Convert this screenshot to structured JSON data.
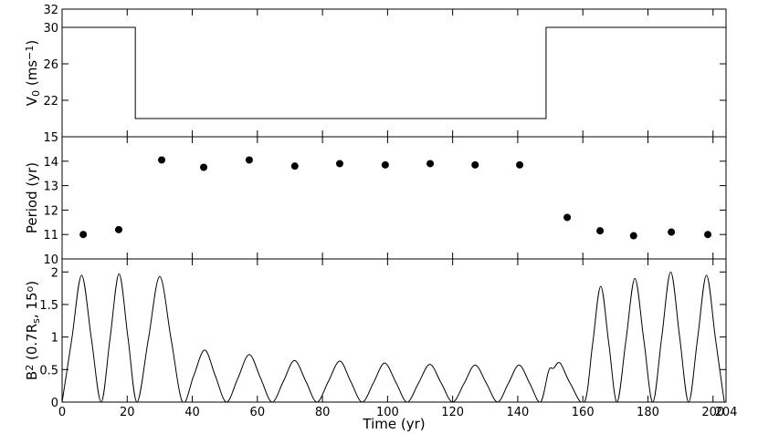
{
  "chart_data": [
    {
      "type": "line",
      "color": "#000000",
      "ylabel": [
        {
          "text": "V"
        },
        {
          "text": "0",
          "sub": true
        },
        {
          "text": " (ms"
        },
        {
          "text": "−1",
          "sup": true
        },
        {
          "text": ")"
        }
      ],
      "x": [
        0,
        22.5,
        22.5,
        148.7,
        148.7,
        204
      ],
      "values": [
        30,
        30,
        20,
        20,
        30,
        30
      ],
      "xlim": [
        0,
        204
      ],
      "ylim": [
        18,
        32
      ],
      "yticks": [
        22,
        26,
        30,
        32
      ]
    },
    {
      "type": "scatter",
      "color": "#000000",
      "ylabel": [
        {
          "text": "Period (yr)"
        }
      ],
      "x": [
        6.5,
        17.4,
        30.6,
        43.5,
        57.5,
        71.5,
        85.3,
        99.3,
        113.1,
        126.9,
        140.6,
        155.2,
        165.3,
        175.6,
        187.2,
        198.4
      ],
      "values": [
        11.0,
        11.2,
        14.05,
        13.75,
        14.05,
        13.8,
        13.9,
        13.85,
        13.9,
        13.85,
        13.85,
        11.7,
        11.15,
        10.95,
        11.1,
        11.0
      ],
      "xlim": [
        0,
        204
      ],
      "ylim": [
        10,
        15
      ],
      "yticks": [
        10,
        11,
        12,
        13,
        14,
        15
      ]
    },
    {
      "type": "line",
      "color": "#000000",
      "smooth": true,
      "ylabel": [
        {
          "text": "B"
        },
        {
          "text": "2",
          "sup": true
        },
        {
          "text": " (0.7R"
        },
        {
          "text": "s",
          "sub": true
        },
        {
          "text": ", 15"
        },
        {
          "text": "o",
          "sup": true
        },
        {
          "text": ")"
        }
      ],
      "xlabel": "Time (yr)",
      "x": [
        0,
        3,
        6,
        9,
        12,
        14.75,
        17.5,
        20.25,
        23,
        26.5,
        30,
        33.5,
        37,
        40.4,
        43.8,
        47.1,
        50.5,
        54,
        57.5,
        61,
        64.5,
        68,
        71.4,
        74.9,
        78.3,
        81.8,
        85.3,
        88.7,
        92.2,
        95.7,
        99.1,
        102.6,
        106,
        109.5,
        113,
        116.5,
        120,
        123.5,
        126.9,
        130.4,
        133.8,
        137.1,
        140.4,
        143.7,
        147,
        149.5,
        151,
        153,
        156,
        160.5,
        163,
        165.5,
        168,
        170.5,
        173.25,
        176,
        178.75,
        181.5,
        184.25,
        187,
        189.75,
        192.5,
        195.25,
        198,
        200.75,
        203.5,
        204
      ],
      "values": [
        0,
        0.975,
        1.95,
        0.975,
        0,
        0.985,
        1.97,
        0.985,
        0,
        0.965,
        1.93,
        0.965,
        0,
        0.4,
        0.8,
        0.4,
        0,
        0.365,
        0.73,
        0.365,
        0,
        0.32,
        0.64,
        0.32,
        0,
        0.315,
        0.63,
        0.315,
        0,
        0.3,
        0.6,
        0.3,
        0,
        0.29,
        0.58,
        0.29,
        0,
        0.285,
        0.57,
        0.285,
        0,
        0.285,
        0.57,
        0.285,
        0,
        0.48,
        0.52,
        0.6,
        0.3,
        0,
        0.89,
        1.78,
        0.89,
        0,
        0.95,
        1.9,
        0.95,
        0,
        1.0,
        2.0,
        1.0,
        0,
        0.975,
        1.95,
        0.975,
        0,
        0.01
      ],
      "xlim": [
        0,
        204
      ],
      "ylim": [
        0,
        2.2
      ],
      "yticks": [
        0,
        0.5,
        1,
        1.5,
        2
      ],
      "xticks": [
        0,
        20,
        40,
        60,
        80,
        100,
        120,
        140,
        160,
        180,
        200,
        204
      ]
    }
  ]
}
